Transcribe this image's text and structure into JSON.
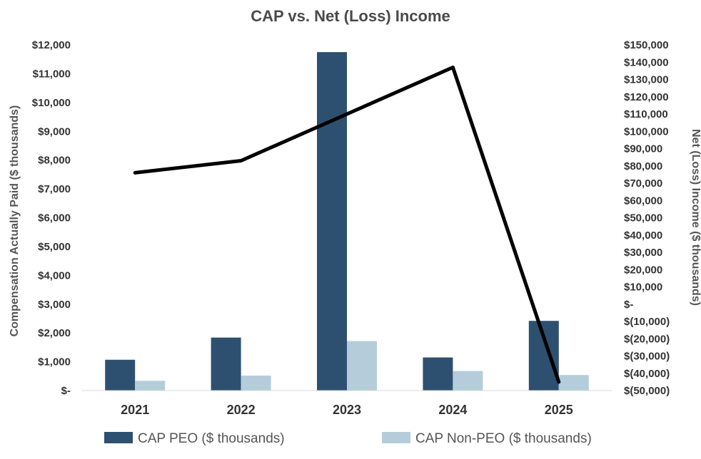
{
  "chart_data": {
    "type": "bar",
    "title": "CAP vs. Net (Loss) Income",
    "categories": [
      "2021",
      "2022",
      "2023",
      "2024",
      "2025"
    ],
    "series": [
      {
        "name": "CAP PEO ($ thousands)",
        "type": "bar",
        "axis": "left",
        "color": "#2e5070",
        "values": [
          1070,
          1840,
          11750,
          1150,
          2420
        ]
      },
      {
        "name": "CAP Non-PEO ($ thousands)",
        "type": "bar",
        "axis": "left",
        "color": "#b5cddb",
        "values": [
          340,
          520,
          1720,
          680,
          540
        ]
      },
      {
        "name": "",
        "type": "line",
        "axis": "right",
        "color": "#000000",
        "values": [
          76000,
          83000,
          110000,
          137000,
          -45000
        ]
      }
    ],
    "ylabel": "Compensation Actually Paid ($ thousands)",
    "ylim": [
      0,
      12000
    ],
    "yticks": [
      0,
      1000,
      2000,
      3000,
      4000,
      5000,
      6000,
      7000,
      8000,
      9000,
      10000,
      11000,
      12000
    ],
    "ytick_labels": [
      "$-",
      "$1,000",
      "$2,000",
      "$3,000",
      "$4,000",
      "$5,000",
      "$6,000",
      "$7,000",
      "$8,000",
      "$9,000",
      "$10,000",
      "$11,000",
      "$12,000"
    ],
    "y2label": "Net (Loss) Income ($ thousands)",
    "y2lim": [
      -50000,
      150000
    ],
    "y2ticks": [
      150000,
      140000,
      130000,
      120000,
      110000,
      100000,
      90000,
      80000,
      70000,
      60000,
      50000,
      40000,
      30000,
      20000,
      10000,
      0,
      -10000,
      -20000,
      -30000,
      -40000,
      -50000
    ],
    "y2tick_labels": [
      "$150,000",
      "$140,000",
      "$130,000",
      "$120,000",
      "$110,000",
      "$100,000",
      "$90,000",
      "$80,000",
      "$70,000",
      "$60,000",
      "$50,000",
      "$40,000",
      "$30,000",
      "$20,000",
      "$10,000",
      "$-",
      "$(10,000)",
      "$(20,000)",
      "$(30,000)",
      "$(40,000)",
      "$(50,000)"
    ],
    "grid": false,
    "legend_position": "bottom"
  }
}
